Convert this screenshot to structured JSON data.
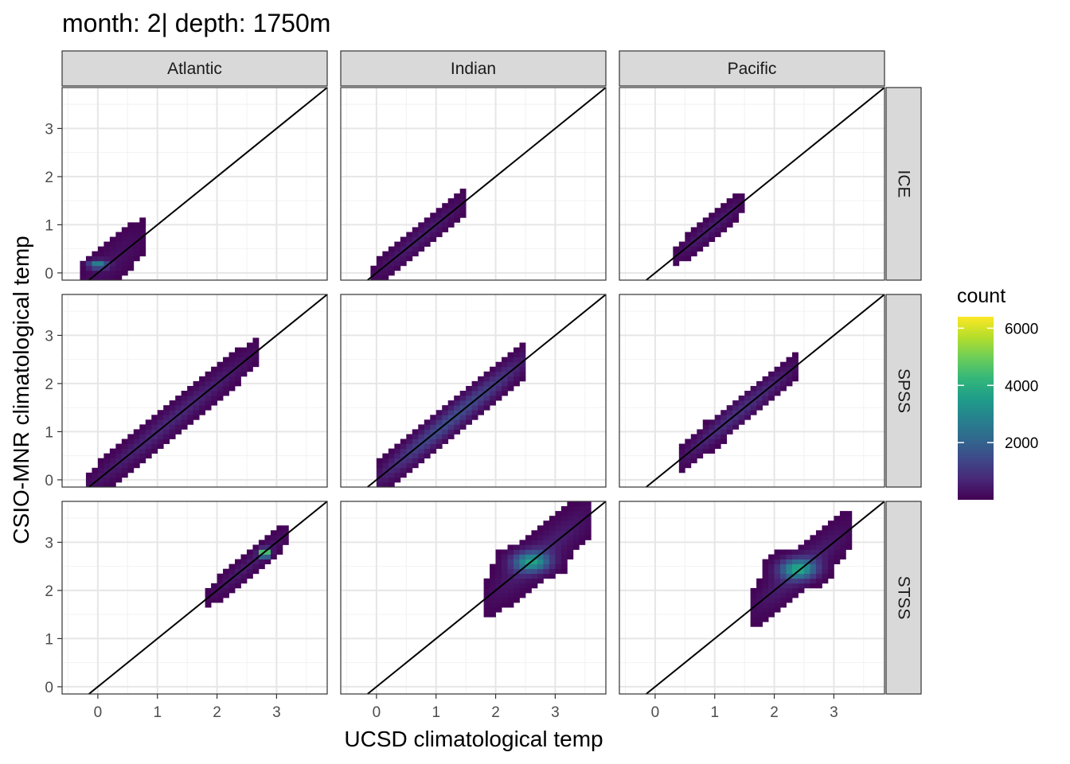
{
  "chart_data": {
    "type": "heatmap",
    "title": "month: 2| depth: 1750m",
    "xlabel": "UCSD climatological temp",
    "ylabel": "CSIO-MNR climatological temp",
    "xlim": [
      -0.6,
      3.85
    ],
    "ylim": [
      -0.15,
      3.85
    ],
    "x_ticks": [
      0,
      1,
      2,
      3
    ],
    "y_ticks": [
      0,
      1,
      2,
      3
    ],
    "grid": true,
    "identity_line": true,
    "columns": [
      "Atlantic",
      "Indian",
      "Pacific"
    ],
    "rows": [
      "ICE",
      "SPSS",
      "STSS"
    ],
    "bin_width": 0.1,
    "legend": {
      "title": "count",
      "ticks": [
        2000,
        4000,
        6000
      ],
      "range": [
        0,
        6400
      ],
      "colormap": "viridis",
      "placement": "right"
    },
    "panels": [
      {
        "column": "Atlantic",
        "row": "ICE",
        "blobs": [
          {
            "kind": "band",
            "x0": -0.3,
            "x1": 0.8,
            "w": 0.6,
            "peak": 300
          },
          {
            "kind": "hot",
            "cx": 0.0,
            "cy": 0.18,
            "sx": 0.15,
            "sy": 0.08,
            "peak": 3000
          }
        ]
      },
      {
        "column": "Indian",
        "row": "ICE",
        "blobs": [
          {
            "kind": "band",
            "x0": -0.1,
            "x1": 1.55,
            "w": 0.35,
            "peak": 500
          }
        ]
      },
      {
        "column": "Pacific",
        "row": "ICE",
        "blobs": [
          {
            "kind": "band",
            "x0": 0.3,
            "x1": 1.55,
            "w": 0.3,
            "peak": 500
          }
        ]
      },
      {
        "column": "Atlantic",
        "row": "SPSS",
        "blobs": [
          {
            "kind": "band",
            "x0": -0.25,
            "x1": 2.7,
            "w": 0.4,
            "peak": 700
          }
        ]
      },
      {
        "column": "Indian",
        "row": "SPSS",
        "blobs": [
          {
            "kind": "band",
            "x0": 0.0,
            "x1": 2.55,
            "w": 0.4,
            "peak": 1500
          }
        ]
      },
      {
        "column": "Pacific",
        "row": "SPSS",
        "blobs": [
          {
            "kind": "band",
            "x0": 0.4,
            "x1": 2.4,
            "w": 0.35,
            "peak": 900
          }
        ]
      },
      {
        "column": "Atlantic",
        "row": "STSS",
        "blobs": [
          {
            "kind": "band",
            "x0": 1.85,
            "x1": 3.25,
            "w": 0.3,
            "peak": 500
          },
          {
            "kind": "hot",
            "cx": 2.8,
            "cy": 2.78,
            "sx": 0.08,
            "sy": 0.08,
            "peak": 6400
          }
        ]
      },
      {
        "column": "Indian",
        "row": "STSS",
        "blobs": [
          {
            "kind": "band",
            "x0": 1.85,
            "x1": 3.65,
            "w": 0.6,
            "peak": 600
          },
          {
            "kind": "hot",
            "cx": 2.6,
            "cy": 2.6,
            "sx": 0.3,
            "sy": 0.2,
            "peak": 3200
          }
        ]
      },
      {
        "column": "Pacific",
        "row": "STSS",
        "blobs": [
          {
            "kind": "band",
            "x0": 1.6,
            "x1": 3.3,
            "w": 0.55,
            "peak": 600
          },
          {
            "kind": "hot",
            "cx": 2.4,
            "cy": 2.45,
            "sx": 0.3,
            "sy": 0.2,
            "peak": 3400
          }
        ]
      }
    ]
  }
}
